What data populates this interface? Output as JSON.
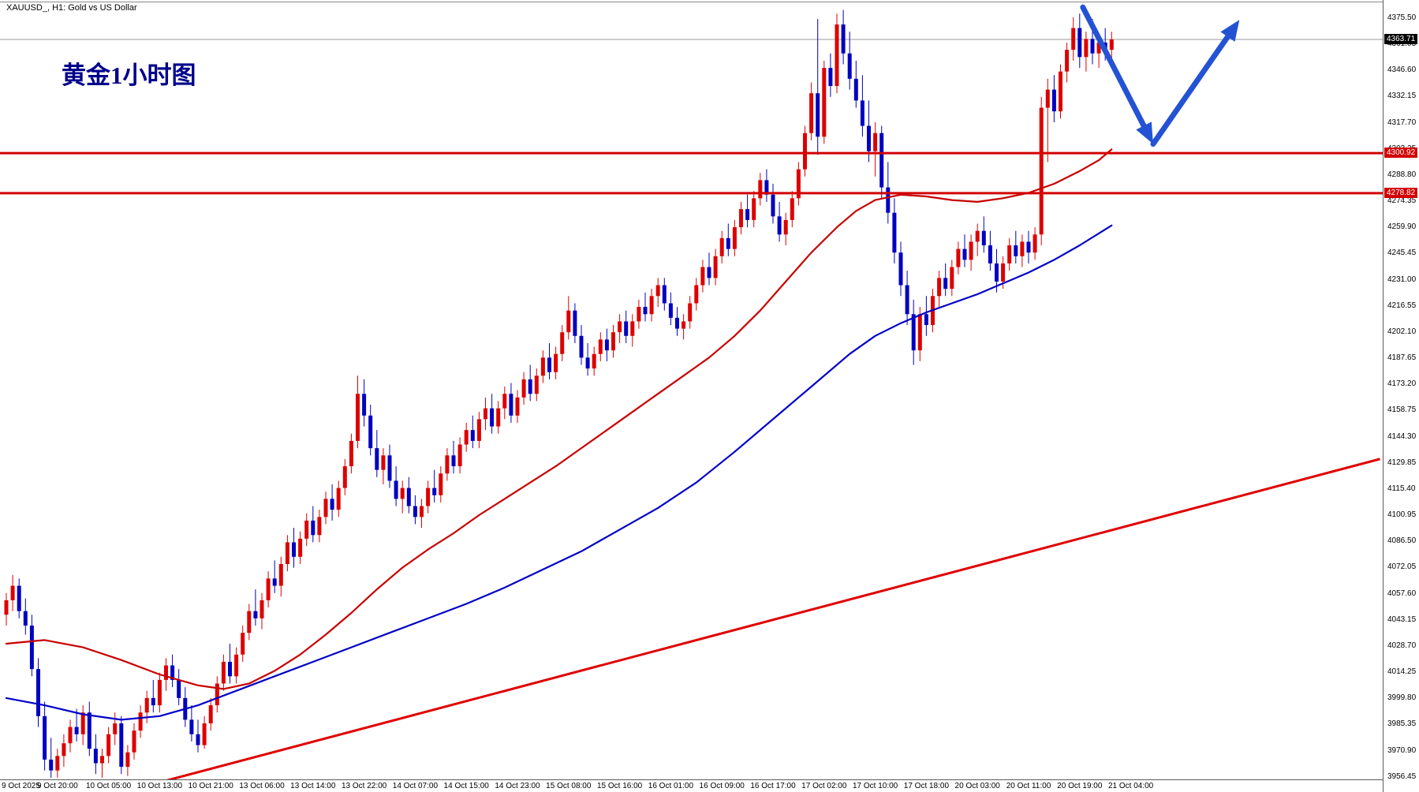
{
  "window": {
    "title": "XAUUSD_, H1:  Gold vs US Dollar"
  },
  "annotations": {
    "chinese_label": "黄金1小时图",
    "chinese_label_color": "#00008B"
  },
  "price_axis": {
    "current_price": "4363.71",
    "ticks": [
      "4375.50",
      "4361.05",
      "4346.60",
      "4332.15",
      "4317.70",
      "4303.25",
      "4288.80",
      "4274.35",
      "4259.90",
      "4245.45",
      "4231.00",
      "4216.55",
      "4202.10",
      "4187.65",
      "4173.20",
      "4158.75",
      "4144.30",
      "4129.85",
      "4115.40",
      "4100.95",
      "4086.50",
      "4072.05",
      "4057.60",
      "4043.15",
      "4028.70",
      "4014.25",
      "3999.80",
      "3985.35",
      "3970.90",
      "3956.45"
    ]
  },
  "time_axis": {
    "labels": [
      "9 Oct 2025",
      "9 Oct 20:00",
      "10 Oct 05:00",
      "10 Oct 13:00",
      "10 Oct 21:00",
      "13 Oct 06:00",
      "13 Oct 14:00",
      "13 Oct 22:00",
      "14 Oct 07:00",
      "14 Oct 15:00",
      "14 Oct 23:00",
      "15 Oct 08:00",
      "15 Oct 16:00",
      "16 Oct 01:00",
      "16 Oct 09:00",
      "16 Oct 17:00",
      "17 Oct 02:00",
      "17 Oct 10:00",
      "17 Oct 18:00",
      "20 Oct 03:00",
      "20 Oct 11:00",
      "20 Oct 19:00",
      "21 Oct 04:00"
    ]
  },
  "chart_data": {
    "type": "candlestick",
    "title": "XAUUSD_, H1:  Gold vs US Dollar",
    "symbol": "XAUUSD",
    "timeframe": "H1",
    "ylim": [
      3948.1,
      4385.5
    ],
    "grid": false,
    "bars_per_label": 8,
    "current_price": 4363.71,
    "colors": {
      "bull": "#DD0000",
      "bear": "#0000C0",
      "current_line": "#9a9a9a"
    },
    "arrow_color": "#2353D4",
    "columns": [
      "open",
      "high",
      "low",
      "close"
    ],
    "candles": [
      [
        4046,
        4058,
        4040,
        4054
      ],
      [
        4054,
        4068,
        4048,
        4062
      ],
      [
        4062,
        4066,
        4044,
        4048
      ],
      [
        4048,
        4055,
        4035,
        4040
      ],
      [
        4040,
        4046,
        4012,
        4016
      ],
      [
        4016,
        4022,
        3984,
        3990
      ],
      [
        3990,
        3998,
        3960,
        3966
      ],
      [
        3966,
        3978,
        3956,
        3960
      ],
      [
        3960,
        3972,
        3956,
        3968
      ],
      [
        3968,
        3980,
        3962,
        3975
      ],
      [
        3975,
        3988,
        3970,
        3984
      ],
      [
        3984,
        3994,
        3976,
        3980
      ],
      [
        3980,
        3996,
        3974,
        3992
      ],
      [
        3992,
        3998,
        3968,
        3972
      ],
      [
        3972,
        3980,
        3958,
        3964
      ],
      [
        3964,
        3972,
        3956,
        3968
      ],
      [
        3968,
        3984,
        3964,
        3980
      ],
      [
        3980,
        3992,
        3974,
        3986
      ],
      [
        3986,
        3990,
        3958,
        3962
      ],
      [
        3962,
        3974,
        3957,
        3970
      ],
      [
        3970,
        3986,
        3966,
        3982
      ],
      [
        3982,
        3996,
        3978,
        3992
      ],
      [
        3992,
        4004,
        3986,
        4000
      ],
      [
        4000,
        4010,
        3992,
        3996
      ],
      [
        3996,
        4014,
        3992,
        4010
      ],
      [
        4010,
        4022,
        4004,
        4018
      ],
      [
        4018,
        4024,
        4006,
        4010
      ],
      [
        4010,
        4016,
        3996,
        4000
      ],
      [
        4000,
        4006,
        3984,
        3988
      ],
      [
        3988,
        3996,
        3976,
        3980
      ],
      [
        3980,
        3988,
        3970,
        3974
      ],
      [
        3974,
        3990,
        3972,
        3986
      ],
      [
        3986,
        4000,
        3982,
        3996
      ],
      [
        3996,
        4012,
        3992,
        4008
      ],
      [
        4008,
        4024,
        4004,
        4020
      ],
      [
        4020,
        4030,
        4008,
        4012
      ],
      [
        4012,
        4028,
        4008,
        4024
      ],
      [
        4024,
        4040,
        4020,
        4036
      ],
      [
        4036,
        4052,
        4032,
        4048
      ],
      [
        4048,
        4060,
        4040,
        4044
      ],
      [
        4044,
        4058,
        4038,
        4054
      ],
      [
        4054,
        4070,
        4050,
        4066
      ],
      [
        4066,
        4076,
        4058,
        4062
      ],
      [
        4062,
        4078,
        4056,
        4074
      ],
      [
        4074,
        4090,
        4070,
        4086
      ],
      [
        4086,
        4094,
        4072,
        4078
      ],
      [
        4078,
        4092,
        4074,
        4088
      ],
      [
        4088,
        4102,
        4084,
        4098
      ],
      [
        4098,
        4106,
        4086,
        4090
      ],
      [
        4090,
        4104,
        4086,
        4100
      ],
      [
        4100,
        4114,
        4096,
        4110
      ],
      [
        4110,
        4118,
        4098,
        4104
      ],
      [
        4104,
        4120,
        4100,
        4116
      ],
      [
        4116,
        4132,
        4112,
        4128
      ],
      [
        4128,
        4146,
        4124,
        4142
      ],
      [
        4142,
        4178,
        4138,
        4168
      ],
      [
        4168,
        4176,
        4150,
        4156
      ],
      [
        4156,
        4162,
        4134,
        4138
      ],
      [
        4138,
        4148,
        4122,
        4126
      ],
      [
        4126,
        4138,
        4118,
        4134
      ],
      [
        4134,
        4140,
        4116,
        4120
      ],
      [
        4120,
        4128,
        4106,
        4110
      ],
      [
        4110,
        4120,
        4102,
        4116
      ],
      [
        4116,
        4122,
        4102,
        4106
      ],
      [
        4106,
        4112,
        4096,
        4100
      ],
      [
        4100,
        4110,
        4094,
        4106
      ],
      [
        4106,
        4120,
        4102,
        4116
      ],
      [
        4116,
        4126,
        4108,
        4112
      ],
      [
        4112,
        4128,
        4108,
        4124
      ],
      [
        4124,
        4138,
        4120,
        4134
      ],
      [
        4134,
        4142,
        4124,
        4128
      ],
      [
        4128,
        4144,
        4124,
        4140
      ],
      [
        4140,
        4152,
        4136,
        4148
      ],
      [
        4148,
        4156,
        4138,
        4142
      ],
      [
        4142,
        4158,
        4138,
        4154
      ],
      [
        4154,
        4166,
        4148,
        4160
      ],
      [
        4160,
        4168,
        4146,
        4150
      ],
      [
        4150,
        4164,
        4146,
        4160
      ],
      [
        4160,
        4172,
        4154,
        4168
      ],
      [
        4168,
        4174,
        4152,
        4156
      ],
      [
        4156,
        4170,
        4152,
        4166
      ],
      [
        4166,
        4180,
        4162,
        4176
      ],
      [
        4176,
        4184,
        4164,
        4168
      ],
      [
        4168,
        4182,
        4164,
        4178
      ],
      [
        4178,
        4192,
        4174,
        4188
      ],
      [
        4188,
        4196,
        4176,
        4180
      ],
      [
        4180,
        4194,
        4176,
        4190
      ],
      [
        4190,
        4206,
        4186,
        4202
      ],
      [
        4202,
        4222,
        4198,
        4214
      ],
      [
        4214,
        4218,
        4196,
        4200
      ],
      [
        4200,
        4206,
        4184,
        4188
      ],
      [
        4188,
        4196,
        4178,
        4182
      ],
      [
        4182,
        4194,
        4178,
        4190
      ],
      [
        4190,
        4202,
        4186,
        4198
      ],
      [
        4198,
        4204,
        4186,
        4192
      ],
      [
        4192,
        4206,
        4188,
        4202
      ],
      [
        4202,
        4212,
        4196,
        4208
      ],
      [
        4208,
        4214,
        4196,
        4200
      ],
      [
        4200,
        4212,
        4194,
        4208
      ],
      [
        4208,
        4220,
        4204,
        4216
      ],
      [
        4216,
        4224,
        4208,
        4212
      ],
      [
        4212,
        4226,
        4208,
        4222
      ],
      [
        4222,
        4232,
        4216,
        4228
      ],
      [
        4228,
        4232,
        4214,
        4218
      ],
      [
        4218,
        4224,
        4206,
        4210
      ],
      [
        4210,
        4216,
        4200,
        4204
      ],
      [
        4204,
        4212,
        4198,
        4208
      ],
      [
        4208,
        4222,
        4204,
        4218
      ],
      [
        4218,
        4232,
        4214,
        4228
      ],
      [
        4228,
        4242,
        4224,
        4238
      ],
      [
        4238,
        4246,
        4228,
        4232
      ],
      [
        4232,
        4248,
        4228,
        4244
      ],
      [
        4244,
        4258,
        4240,
        4254
      ],
      [
        4254,
        4262,
        4244,
        4248
      ],
      [
        4248,
        4264,
        4244,
        4260
      ],
      [
        4260,
        4274,
        4256,
        4270
      ],
      [
        4270,
        4278,
        4260,
        4264
      ],
      [
        4264,
        4280,
        4260,
        4276
      ],
      [
        4276,
        4290,
        4272,
        4286
      ],
      [
        4286,
        4292,
        4274,
        4278
      ],
      [
        4278,
        4284,
        4262,
        4266
      ],
      [
        4266,
        4274,
        4252,
        4256
      ],
      [
        4256,
        4268,
        4250,
        4264
      ],
      [
        4264,
        4280,
        4260,
        4276
      ],
      [
        4276,
        4296,
        4272,
        4292
      ],
      [
        4292,
        4316,
        4288,
        4312
      ],
      [
        4312,
        4340,
        4308,
        4334
      ],
      [
        4334,
        4375,
        4300,
        4310
      ],
      [
        4310,
        4352,
        4306,
        4348
      ],
      [
        4348,
        4356,
        4332,
        4338
      ],
      [
        4338,
        4378,
        4334,
        4372
      ],
      [
        4372,
        4380,
        4350,
        4356
      ],
      [
        4356,
        4368,
        4336,
        4342
      ],
      [
        4342,
        4352,
        4326,
        4330
      ],
      [
        4330,
        4344,
        4310,
        4316
      ],
      [
        4316,
        4330,
        4296,
        4302
      ],
      [
        4302,
        4318,
        4288,
        4312
      ],
      [
        4312,
        4316,
        4276,
        4282
      ],
      [
        4282,
        4296,
        4262,
        4268
      ],
      [
        4268,
        4276,
        4240,
        4246
      ],
      [
        4246,
        4252,
        4222,
        4228
      ],
      [
        4228,
        4236,
        4206,
        4212
      ],
      [
        4212,
        4220,
        4184,
        4192
      ],
      [
        4192,
        4216,
        4186,
        4212
      ],
      [
        4212,
        4222,
        4200,
        4206
      ],
      [
        4206,
        4226,
        4202,
        4222
      ],
      [
        4222,
        4236,
        4216,
        4232
      ],
      [
        4232,
        4240,
        4222,
        4226
      ],
      [
        4226,
        4242,
        4222,
        4238
      ],
      [
        4238,
        4252,
        4234,
        4248
      ],
      [
        4248,
        4256,
        4238,
        4242
      ],
      [
        4242,
        4256,
        4236,
        4252
      ],
      [
        4252,
        4262,
        4244,
        4258
      ],
      [
        4258,
        4266,
        4246,
        4250
      ],
      [
        4250,
        4258,
        4236,
        4240
      ],
      [
        4240,
        4248,
        4224,
        4230
      ],
      [
        4230,
        4244,
        4226,
        4240
      ],
      [
        4240,
        4254,
        4236,
        4250
      ],
      [
        4250,
        4258,
        4240,
        4244
      ],
      [
        4244,
        4256,
        4238,
        4252
      ],
      [
        4252,
        4258,
        4240,
        4246
      ],
      [
        4246,
        4260,
        4242,
        4256
      ],
      [
        4256,
        4332,
        4250,
        4326
      ],
      [
        4326,
        4342,
        4296,
        4336
      ],
      [
        4336,
        4344,
        4318,
        4324
      ],
      [
        4324,
        4350,
        4320,
        4346
      ],
      [
        4346,
        4362,
        4340,
        4358
      ],
      [
        4358,
        4376,
        4352,
        4370
      ],
      [
        4370,
        4378,
        4348,
        4354
      ],
      [
        4354,
        4368,
        4346,
        4364
      ],
      [
        4364,
        4375,
        4350,
        4356
      ],
      [
        4356,
        4366,
        4348,
        4362
      ],
      [
        4362,
        4370,
        4352,
        4358
      ],
      [
        4358,
        4368,
        4350,
        4363.71
      ]
    ],
    "ma_fast": {
      "color": "#C80000",
      "points": [
        [
          0,
          4030
        ],
        [
          6,
          4032
        ],
        [
          12,
          4028
        ],
        [
          18,
          4021
        ],
        [
          24,
          4013
        ],
        [
          30,
          4007
        ],
        [
          34,
          4005
        ],
        [
          38,
          4008
        ],
        [
          42,
          4015
        ],
        [
          46,
          4024
        ],
        [
          50,
          4035
        ],
        [
          54,
          4047
        ],
        [
          58,
          4060
        ],
        [
          62,
          4072
        ],
        [
          66,
          4082
        ],
        [
          70,
          4091
        ],
        [
          74,
          4101
        ],
        [
          78,
          4110
        ],
        [
          82,
          4119
        ],
        [
          86,
          4128
        ],
        [
          90,
          4138
        ],
        [
          94,
          4148
        ],
        [
          98,
          4158
        ],
        [
          102,
          4168
        ],
        [
          106,
          4178
        ],
        [
          110,
          4188
        ],
        [
          114,
          4200
        ],
        [
          118,
          4214
        ],
        [
          122,
          4230
        ],
        [
          126,
          4246
        ],
        [
          130,
          4260
        ],
        [
          133,
          4269
        ],
        [
          136,
          4275
        ],
        [
          140,
          4278
        ],
        [
          144,
          4277
        ],
        [
          148,
          4275
        ],
        [
          152,
          4274
        ],
        [
          156,
          4276
        ],
        [
          160,
          4279
        ],
        [
          164,
          4284
        ],
        [
          168,
          4291
        ],
        [
          171,
          4297
        ],
        [
          173,
          4303
        ]
      ]
    },
    "ma_slow": {
      "color": "#0000C8",
      "points": [
        [
          0,
          4000
        ],
        [
          6,
          3996
        ],
        [
          12,
          3991
        ],
        [
          18,
          3988
        ],
        [
          24,
          3990
        ],
        [
          30,
          3996
        ],
        [
          36,
          4004
        ],
        [
          42,
          4012
        ],
        [
          48,
          4020
        ],
        [
          54,
          4028
        ],
        [
          60,
          4036
        ],
        [
          66,
          4044
        ],
        [
          72,
          4052
        ],
        [
          78,
          4061
        ],
        [
          84,
          4071
        ],
        [
          90,
          4081
        ],
        [
          96,
          4093
        ],
        [
          102,
          4105
        ],
        [
          108,
          4119
        ],
        [
          114,
          4136
        ],
        [
          120,
          4154
        ],
        [
          126,
          4172
        ],
        [
          132,
          4190
        ],
        [
          136,
          4200
        ],
        [
          140,
          4207
        ],
        [
          144,
          4213
        ],
        [
          148,
          4218
        ],
        [
          152,
          4223
        ],
        [
          156,
          4229
        ],
        [
          160,
          4235
        ],
        [
          164,
          4242
        ],
        [
          168,
          4250
        ],
        [
          173,
          4261
        ]
      ]
    },
    "trendline": {
      "color": "#E00000",
      "from": [
        0,
        3931
      ],
      "to": [
        215,
        4132
      ]
    },
    "hlines": [
      {
        "price": 4300.92,
        "label": "4300.92",
        "color": "#D20000"
      },
      {
        "price": 4278.82,
        "label": "4278.82",
        "color": "#D20000"
      }
    ],
    "forecast_arrows": [
      {
        "name": "forecast-arrow-down",
        "from": [
          168.5,
          4381.5
        ],
        "to": [
          179.5,
          4306
        ]
      },
      {
        "name": "forecast-arrow-up",
        "from": [
          179.5,
          4306
        ],
        "to": [
          193,
          4374.5
        ]
      }
    ]
  }
}
